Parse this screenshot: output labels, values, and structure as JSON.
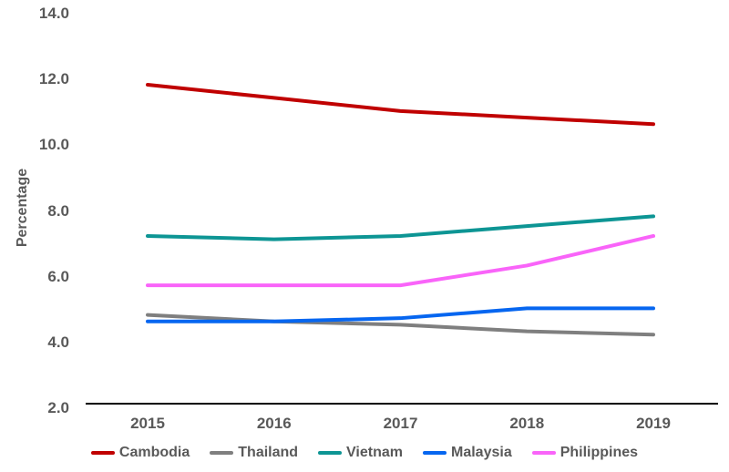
{
  "figure": {
    "background": "#ffffff",
    "axis_text_color": "#595959",
    "axis_line_color": "#000000"
  },
  "chart_data": {
    "type": "line",
    "title": "",
    "xlabel": "",
    "ylabel": "Percentage",
    "categories": [
      "2015",
      "2016",
      "2017",
      "2018",
      "2019"
    ],
    "series": [
      {
        "name": "Cambodia",
        "color": "#c00000",
        "values": [
          11.7,
          11.3,
          10.9,
          10.7,
          10.5
        ]
      },
      {
        "name": "Thailand",
        "color": "#7f7f7f",
        "values": [
          4.7,
          4.5,
          4.4,
          4.2,
          4.1
        ]
      },
      {
        "name": "Vietnam",
        "color": "#0d9594",
        "values": [
          7.1,
          7.0,
          7.1,
          7.4,
          7.7
        ]
      },
      {
        "name": "Malaysia",
        "color": "#0666f0",
        "values": [
          4.5,
          4.5,
          4.6,
          4.9,
          4.9
        ]
      },
      {
        "name": "Philippines",
        "color": "#f964f9",
        "values": [
          5.6,
          5.6,
          5.6,
          6.2,
          7.1
        ]
      }
    ],
    "ylim": [
      2.0,
      14.0
    ],
    "y_ticks": [
      "2.0",
      "4.0",
      "6.0",
      "8.0",
      "10.0",
      "12.0",
      "14.0"
    ],
    "y_tick_values": [
      2,
      4,
      6,
      8,
      10,
      12,
      14
    ],
    "grid": false,
    "legend_position": "bottom"
  }
}
